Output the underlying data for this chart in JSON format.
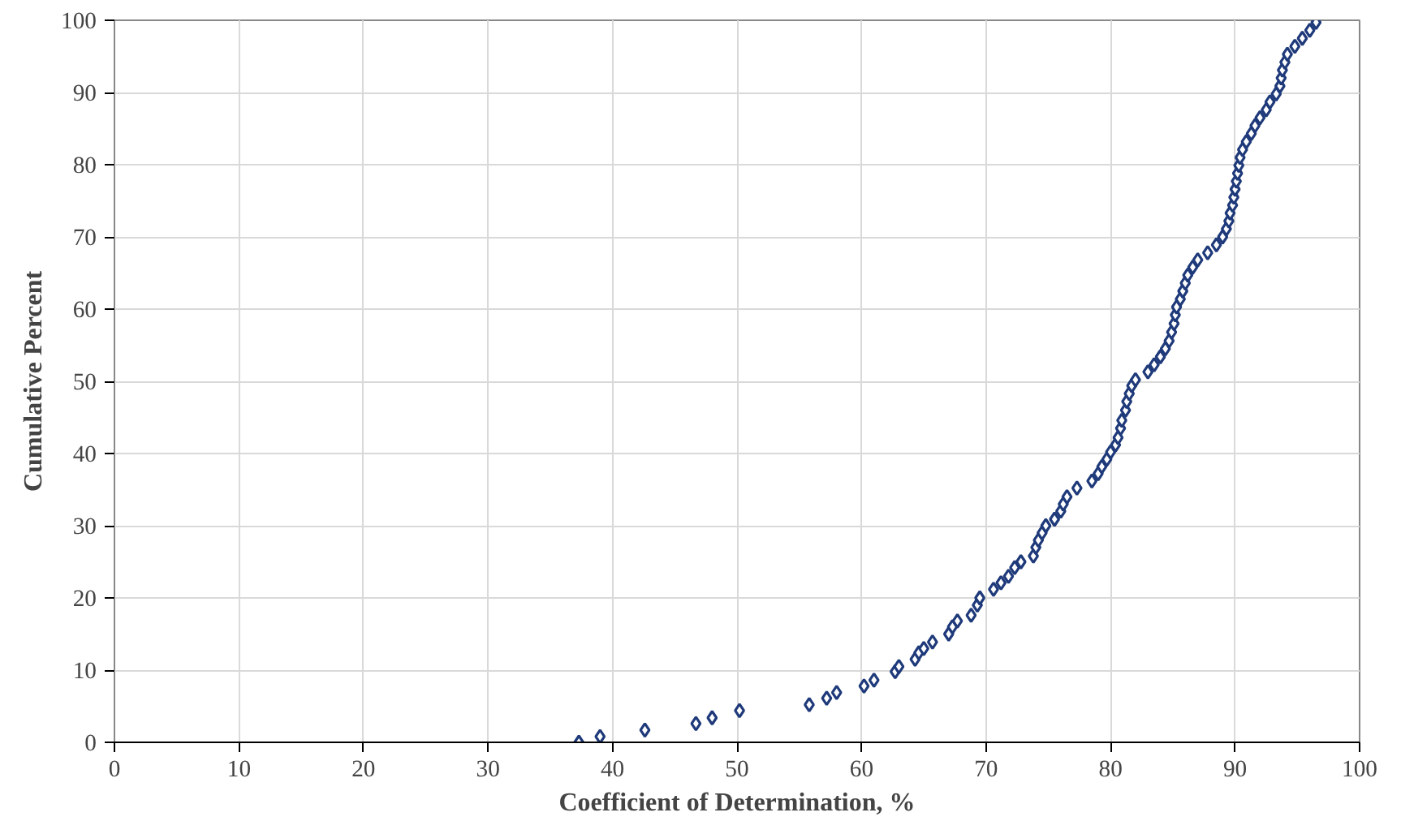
{
  "chart_data": {
    "type": "scatter",
    "xlabel": "Coefficient of Determination, %",
    "ylabel": "Cumulative Percent",
    "xlim": [
      0,
      100
    ],
    "ylim": [
      0,
      100
    ],
    "xticks": [
      0,
      10,
      20,
      30,
      40,
      50,
      60,
      70,
      80,
      90,
      100
    ],
    "yticks": [
      0,
      10,
      20,
      30,
      40,
      50,
      60,
      70,
      80,
      90,
      100
    ],
    "grid": true,
    "marker": "diamond",
    "series": [
      {
        "color": "#1f3a7a",
        "x": [
          37.3,
          39,
          42.6,
          46.7,
          48,
          50.2,
          55.8,
          57.2,
          58,
          60.2,
          61,
          62.7,
          63,
          64.3,
          64.6,
          65,
          65.7,
          67,
          67.3,
          67.7,
          68.8,
          69.3,
          69.5,
          70.6,
          71.2,
          71.8,
          72.3,
          72.8,
          73.8,
          74,
          74.2,
          74.5,
          74.8,
          75.5,
          76,
          76.2,
          76.5,
          77.3,
          78.5,
          79,
          79.3,
          79.7,
          80,
          80.4,
          80.6,
          80.8,
          80.9,
          81.2,
          81.3,
          81.5,
          81.7,
          82,
          83,
          83.5,
          84,
          84.4,
          84.7,
          84.9,
          85.1,
          85.2,
          85.3,
          85.6,
          85.8,
          86,
          86.2,
          86.6,
          87,
          87.8,
          88.5,
          89,
          89.3,
          89.5,
          89.6,
          89.8,
          89.9,
          90,
          90.1,
          90.2,
          90.3,
          90.4,
          90.6,
          90.9,
          91.3,
          91.6,
          92,
          92.5,
          92.8,
          93.3,
          93.6,
          93.7,
          93.8,
          94,
          94.2,
          94.8,
          95.4,
          96,
          96.5
        ],
        "values": [
          0,
          0.8,
          1.7,
          2.6,
          3.4,
          4.4,
          5.2,
          6.1,
          6.9,
          7.8,
          8.6,
          9.8,
          10.5,
          11.5,
          12.4,
          13,
          13.9,
          15,
          16,
          16.8,
          17.6,
          19,
          20,
          21.2,
          22.1,
          23,
          24.2,
          25,
          25.8,
          27,
          28,
          29,
          30,
          30.9,
          32,
          33,
          34,
          35.2,
          36.2,
          37.2,
          38.2,
          39.2,
          40.2,
          41.2,
          42.2,
          43.5,
          44.6,
          46,
          47.2,
          48.3,
          49.4,
          50.2,
          51.3,
          52.3,
          53.4,
          54.5,
          55.6,
          56.8,
          58,
          59.2,
          60.3,
          61.4,
          62.5,
          63.6,
          64.7,
          65.8,
          66.8,
          67.8,
          68.9,
          70,
          71.1,
          72.2,
          73.3,
          74.4,
          75.5,
          76.6,
          77.7,
          78.8,
          79.9,
          81,
          82.1,
          83.2,
          84.3,
          85.4,
          86.5,
          87.6,
          88.7,
          89.8,
          90.9,
          92,
          93.1,
          94.2,
          95.3,
          96.4,
          97.5,
          98.6,
          99.7
        ]
      }
    ]
  }
}
